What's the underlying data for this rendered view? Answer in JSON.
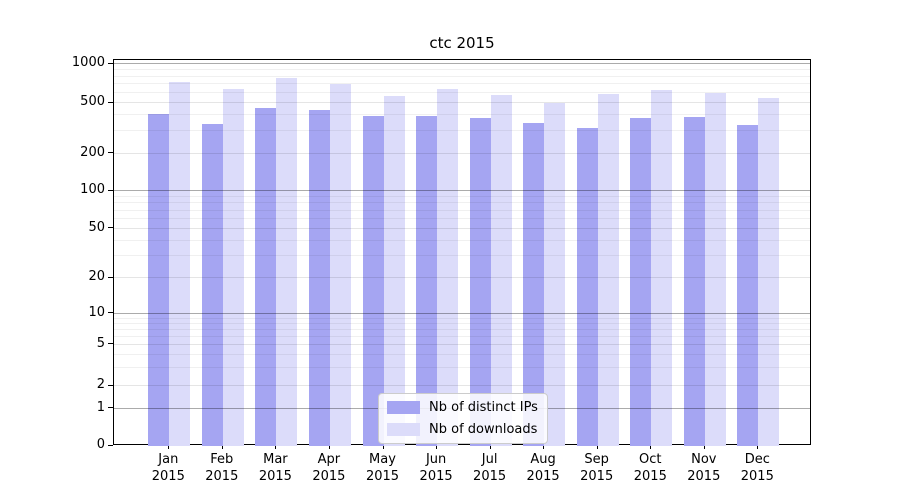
{
  "chart_data": {
    "type": "bar",
    "title": "ctc 2015",
    "categories": [
      "Jan",
      "Feb",
      "Mar",
      "Apr",
      "May",
      "Jun",
      "Jul",
      "Aug",
      "Sep",
      "Oct",
      "Nov",
      "Dec"
    ],
    "category_year": "2015",
    "series": [
      {
        "name": "Nb of distinct IPs",
        "color": "#a5a5f2",
        "values": [
          410,
          345,
          460,
          440,
          395,
          395,
          380,
          350,
          320,
          380,
          390,
          335
        ]
      },
      {
        "name": "Nb of downloads",
        "color": "#dcdcfa",
        "values": [
          730,
          645,
          780,
          700,
          570,
          640,
          575,
          500,
          590,
          630,
          595,
          545
        ]
      }
    ],
    "y_axis": {
      "scale": "symlog",
      "ticks": [
        0,
        1,
        2,
        5,
        10,
        20,
        50,
        100,
        200,
        500,
        1000
      ],
      "decade_ticks": [
        1,
        10,
        100,
        1000
      ],
      "range": [
        0,
        1000
      ]
    },
    "x_axis": {
      "label": ""
    },
    "grid": true,
    "legend_position": "inside-bottom-center",
    "colors": {
      "major_grid": "rgba(0,0,0,0.33)",
      "labeled_grid": "rgba(0,0,0,0.10)",
      "minor_grid": "rgba(0,0,0,0.06)",
      "axis": "#000000",
      "background": "#ffffff"
    }
  }
}
